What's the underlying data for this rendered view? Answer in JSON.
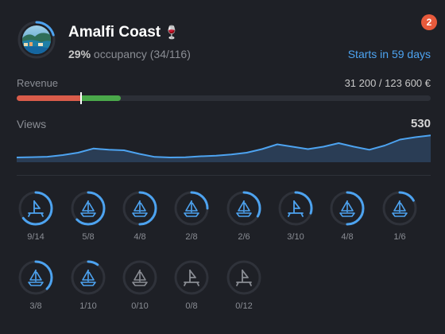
{
  "badge_count": "2",
  "listing": {
    "title": "Amalfi Coast",
    "title_emoji": "🍷",
    "occupancy_percent": "29%",
    "occupancy_text": "occupancy",
    "occupancy_counts": "(34/116)",
    "starts": "Starts in 59 days"
  },
  "revenue": {
    "label": "Revenue",
    "value": "31 200 / 123 600 €",
    "fraction": 0.2524,
    "red_fraction": 0.155,
    "colors": {
      "past": "#d95c4a",
      "future": "#4aa84a",
      "track": "#2c2f37"
    }
  },
  "views": {
    "label": "Views",
    "total": "530",
    "series": [
      4,
      4.3,
      4.6,
      6,
      8,
      11.5,
      10.5,
      10,
      7,
      4.5,
      4,
      4.2,
      5,
      5.5,
      6.5,
      8,
      11,
      15,
      13,
      11,
      13,
      16,
      13,
      10.5,
      14,
      19,
      21,
      22.5
    ]
  },
  "boats": [
    {
      "icon": "sailboat-alt-icon",
      "fraction": "9/14",
      "ratio": 0.643,
      "active": true
    },
    {
      "icon": "sailboat-icon",
      "fraction": "5/8",
      "ratio": 0.625,
      "active": true
    },
    {
      "icon": "sailboat-icon",
      "fraction": "4/8",
      "ratio": 0.5,
      "active": true
    },
    {
      "icon": "sailboat-icon",
      "fraction": "2/8",
      "ratio": 0.25,
      "active": true
    },
    {
      "icon": "sailboat-icon",
      "fraction": "2/6",
      "ratio": 0.333,
      "active": true
    },
    {
      "icon": "sailboat-alt-icon",
      "fraction": "3/10",
      "ratio": 0.3,
      "active": true
    },
    {
      "icon": "sailboat-icon",
      "fraction": "4/8",
      "ratio": 0.5,
      "active": true
    },
    {
      "icon": "sailboat-icon",
      "fraction": "1/6",
      "ratio": 0.167,
      "active": true
    },
    {
      "icon": "sailboat-icon",
      "fraction": "3/8",
      "ratio": 0.375,
      "active": true
    },
    {
      "icon": "sailboat-icon",
      "fraction": "1/10",
      "ratio": 0.1,
      "active": true
    },
    {
      "icon": "sailboat-icon",
      "fraction": "0/10",
      "ratio": 0,
      "active": false
    },
    {
      "icon": "sailboat-alt-icon",
      "fraction": "0/8",
      "ratio": 0,
      "active": false
    },
    {
      "icon": "sailboat-alt-icon",
      "fraction": "0/12",
      "ratio": 0,
      "active": false
    }
  ],
  "colors": {
    "accent": "#4da3f0",
    "badge": "#e85a3c",
    "muted_icon": "#8a8d94",
    "ring_track": "#2f323a"
  }
}
